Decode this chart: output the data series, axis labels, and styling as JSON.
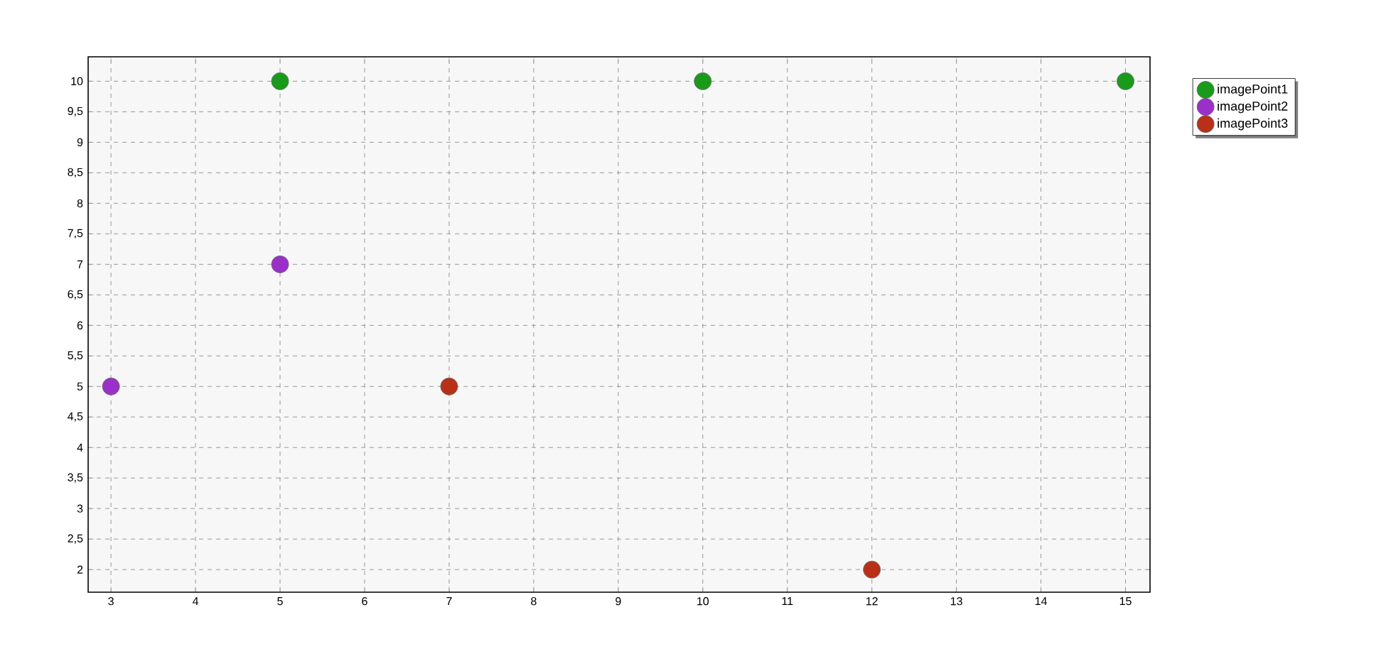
{
  "chart_data": {
    "type": "scatter",
    "xlim": [
      2.73,
      15.29
    ],
    "ylim": [
      1.63,
      10.4
    ],
    "xticks": [
      3,
      4,
      5,
      6,
      7,
      8,
      9,
      10,
      11,
      12,
      13,
      14,
      15
    ],
    "yticks": [
      2,
      {
        "value": 2.5,
        "label": "2,5"
      },
      3,
      {
        "value": 3.5,
        "label": "3,5"
      },
      4,
      {
        "value": 4.5,
        "label": "4,5"
      },
      5,
      {
        "value": 5.5,
        "label": "5,5"
      },
      6,
      {
        "value": 6.5,
        "label": "6,5"
      },
      7,
      {
        "value": 7.5,
        "label": "7,5"
      },
      8,
      {
        "value": 8.5,
        "label": "8,5"
      },
      9,
      {
        "value": 9.5,
        "label": "9,5"
      },
      10
    ],
    "grid": true,
    "legend": "top right",
    "marker": "circle",
    "series": [
      {
        "name": "imagePoint1",
        "color": "#1a9a1a",
        "x": [
          5,
          10,
          15
        ],
        "values": [
          10,
          10,
          10
        ]
      },
      {
        "name": "imagePoint2",
        "color": "#9a30c8",
        "x": [
          3,
          5
        ],
        "values": [
          5,
          7
        ]
      },
      {
        "name": "imagePoint3",
        "color": "#b83018",
        "x": [
          7,
          12
        ],
        "values": [
          5,
          2
        ]
      }
    ]
  }
}
